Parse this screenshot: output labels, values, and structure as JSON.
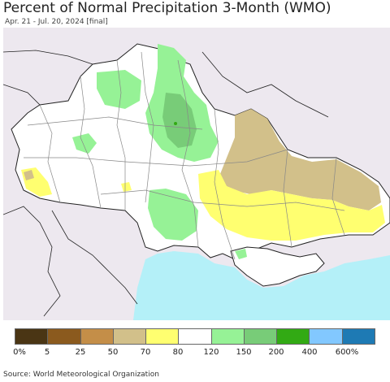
{
  "header": {
    "title": "Percent of Normal Precipitation 3-Month (WMO)",
    "subtitle": "Apr. 21 - Jul. 20, 2024 [final]"
  },
  "legend": {
    "colors": [
      "#4a3514",
      "#8b5a1e",
      "#c48e48",
      "#d2c08a",
      "#ffff70",
      "#ffffff",
      "#96f296",
      "#78cc78",
      "#32aa14",
      "#82c8ff",
      "#1e7ab4"
    ],
    "tick_labels": [
      "0%",
      "5",
      "25",
      "50",
      "70",
      "80",
      "120",
      "150",
      "200",
      "400",
      "600%"
    ]
  },
  "map": {
    "background_color": "#ffffff",
    "outside_color": "#ede8ef",
    "sea_color": "#b4f0f8",
    "border_color": "#222222",
    "region_border_color": "#888888"
  },
  "footer": {
    "source": "Source: World Meteorological Organization"
  }
}
